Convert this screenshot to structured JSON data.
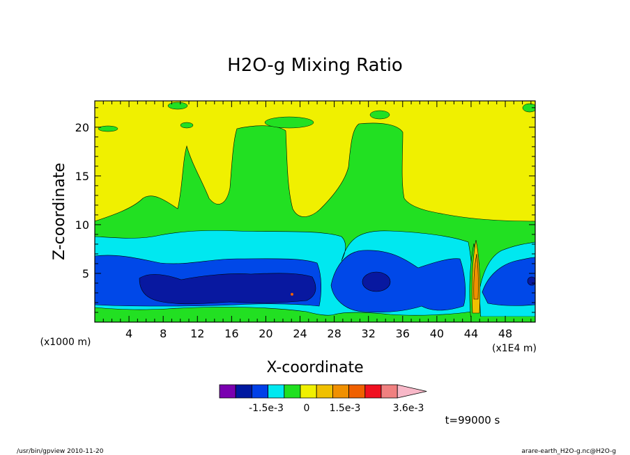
{
  "chart_data": {
    "type": "heatmap",
    "title": "H2O-g Mixing Ratio",
    "xlabel": "X-coordinate",
    "ylabel": "Z-coordinate",
    "x_unit_left": "(x1000 m)",
    "x_unit_right": "(x1E4 m)",
    "xlim": [
      0,
      51.5
    ],
    "ylim": [
      0,
      22.7
    ],
    "x_ticks": [
      4,
      8,
      12,
      16,
      20,
      24,
      28,
      32,
      36,
      40,
      44,
      48
    ],
    "y_ticks": [
      5,
      10,
      15,
      20
    ],
    "colorbar": {
      "colors": [
        "#7a00b0",
        "#0018a0",
        "#0040e8",
        "#00e8f0",
        "#20e020",
        "#f0f000",
        "#f0c000",
        "#f09000",
        "#f06000",
        "#f01020",
        "#f08080",
        "#f8b8c8"
      ],
      "labels": [
        "-1.5e-3",
        "0",
        "1.5e-3",
        "3.6e-3"
      ]
    },
    "time_label": "t=99000 s",
    "footer_left": "/usr/bin/gpview  2010-11-20",
    "footer_right": "arare-earth_H2O-g.nc@H2O-g",
    "field_regions": {
      "background_level": "yellow, near 0 (upper domain)",
      "green_band_z": [
        0,
        10
      ],
      "cyan_band_z": [
        1,
        9
      ],
      "blue_band_z": [
        1.5,
        7
      ],
      "darkblue_core_x": [
        5,
        27
      ],
      "darkblue_core_z": [
        2,
        5
      ],
      "plume_x": [
        43,
        45
      ]
    }
  }
}
